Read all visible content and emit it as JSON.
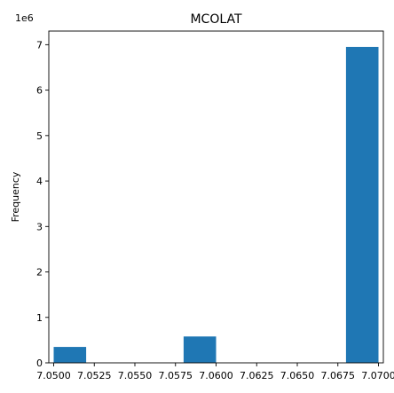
{
  "chart_data": {
    "type": "histogram",
    "title": "MCOLAT",
    "xlabel": "",
    "ylabel": "Frequency",
    "y_offset_label": "1e6",
    "xlim": [
      7.0497,
      7.0703
    ],
    "ylim": [
      0,
      7300000
    ],
    "x_ticks": [
      7.05,
      7.0525,
      7.055,
      7.0575,
      7.06,
      7.0625,
      7.065,
      7.0675,
      7.07
    ],
    "x_tick_labels": [
      "7.0500",
      "7.0525",
      "7.0550",
      "7.0575",
      "7.0600",
      "7.0625",
      "7.0650",
      "7.0675",
      "7.0700"
    ],
    "y_ticks": [
      0,
      1000000,
      2000000,
      3000000,
      4000000,
      5000000,
      6000000,
      7000000
    ],
    "y_tick_labels": [
      "0",
      "1",
      "2",
      "3",
      "4",
      "5",
      "6",
      "7"
    ],
    "bins": [
      {
        "x0": 7.05,
        "x1": 7.052,
        "value": 350000
      },
      {
        "x0": 7.052,
        "x1": 7.054,
        "value": 0
      },
      {
        "x0": 7.054,
        "x1": 7.056,
        "value": 0
      },
      {
        "x0": 7.056,
        "x1": 7.058,
        "value": 0
      },
      {
        "x0": 7.058,
        "x1": 7.06,
        "value": 580000
      },
      {
        "x0": 7.06,
        "x1": 7.062,
        "value": 0
      },
      {
        "x0": 7.062,
        "x1": 7.064,
        "value": 0
      },
      {
        "x0": 7.064,
        "x1": 7.066,
        "value": 0
      },
      {
        "x0": 7.066,
        "x1": 7.068,
        "value": 0
      },
      {
        "x0": 7.068,
        "x1": 7.07,
        "value": 6950000
      }
    ],
    "bar_color": "#1f77b4",
    "grid": false,
    "legend": "none"
  }
}
